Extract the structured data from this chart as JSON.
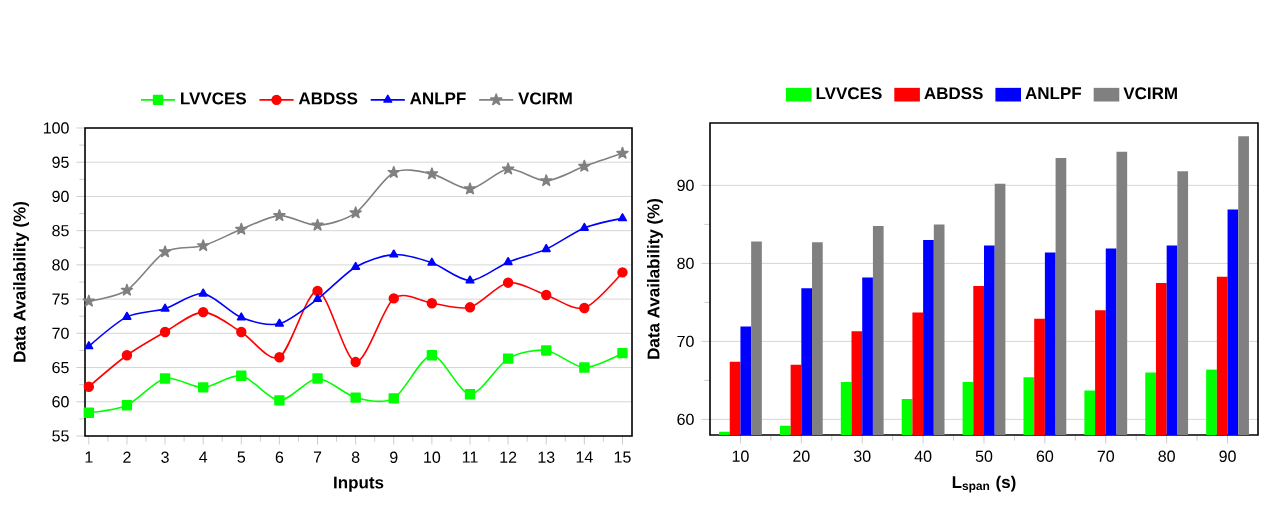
{
  "chart_data": [
    {
      "type": "line",
      "xlabel": "Inputs",
      "ylabel": "Data Availability (%)",
      "x": [
        1,
        2,
        3,
        4,
        5,
        6,
        7,
        8,
        9,
        10,
        11,
        12,
        13,
        14,
        15
      ],
      "xlim": [
        0.9,
        15.25
      ],
      "xticks": [
        1,
        2,
        3,
        4,
        5,
        6,
        7,
        8,
        9,
        10,
        11,
        12,
        13,
        14,
        15
      ],
      "ylim": [
        55,
        100
      ],
      "yticks": [
        55,
        60,
        65,
        70,
        75,
        80,
        85,
        90,
        95,
        100
      ],
      "grid": "y",
      "legend": "top",
      "series": [
        {
          "name": "LVVCES",
          "color": "#00ff00",
          "marker": "square",
          "values": [
            58.4,
            59.5,
            63.4,
            62.1,
            63.8,
            60.2,
            63.4,
            60.6,
            60.5,
            66.8,
            61.1,
            66.3,
            67.5,
            65.0,
            67.1
          ]
        },
        {
          "name": "ABDSS",
          "color": "#ff0000",
          "marker": "circle",
          "values": [
            62.2,
            66.8,
            70.2,
            73.1,
            70.2,
            66.5,
            76.2,
            65.8,
            75.1,
            74.4,
            73.8,
            77.4,
            75.6,
            73.7,
            78.9
          ]
        },
        {
          "name": "ANLPF",
          "color": "#0000ff",
          "marker": "triangle",
          "values": [
            68.1,
            72.4,
            73.6,
            75.8,
            72.3,
            71.4,
            75.0,
            79.7,
            81.5,
            80.3,
            77.7,
            80.4,
            82.3,
            85.4,
            86.8
          ]
        },
        {
          "name": "VCIRM",
          "color": "#808080",
          "marker": "star",
          "values": [
            74.7,
            76.3,
            81.9,
            82.8,
            85.2,
            87.2,
            85.8,
            87.6,
            93.5,
            93.3,
            91.1,
            94.0,
            92.3,
            94.4,
            96.3
          ]
        }
      ]
    },
    {
      "type": "bar",
      "xlabel": "L$_{span}$ (s)",
      "ylabel": "Data Availability (%)",
      "categories": [
        "10",
        "20",
        "30",
        "40",
        "50",
        "60",
        "70",
        "80",
        "90"
      ],
      "ylim": [
        58,
        98
      ],
      "yticks": [
        60,
        70,
        80,
        90
      ],
      "grid": "y",
      "legend": "top",
      "series": [
        {
          "name": "LVVCES",
          "color": "#00ff00",
          "values": [
            58.4,
            59.2,
            64.8,
            62.6,
            64.8,
            65.4,
            63.7,
            66.0,
            66.4
          ]
        },
        {
          "name": "ABDSS",
          "color": "#ff0000",
          "values": [
            67.4,
            67.0,
            71.3,
            73.7,
            77.1,
            72.9,
            74.0,
            77.5,
            78.3
          ]
        },
        {
          "name": "ANLPF",
          "color": "#0000ff",
          "values": [
            71.9,
            76.8,
            78.2,
            83.0,
            82.3,
            81.4,
            81.9,
            82.3,
            86.9
          ]
        },
        {
          "name": "VCIRM",
          "color": "#808080",
          "values": [
            82.8,
            82.7,
            84.8,
            85.0,
            90.2,
            93.5,
            94.3,
            91.8,
            96.3
          ]
        }
      ]
    }
  ]
}
